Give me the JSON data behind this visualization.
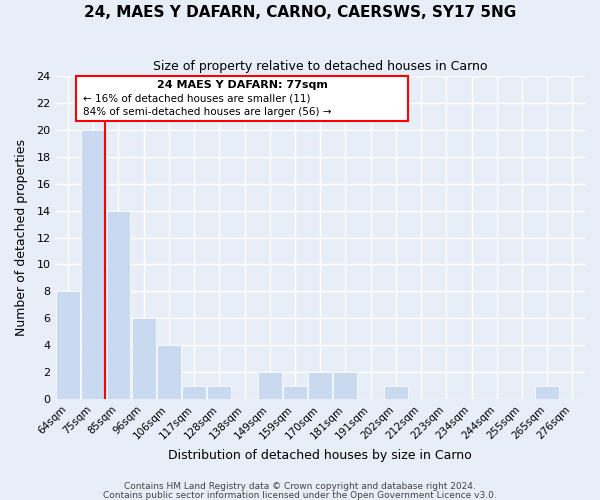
{
  "title": "24, MAES Y DAFARN, CARNO, CAERSWS, SY17 5NG",
  "subtitle": "Size of property relative to detached houses in Carno",
  "xlabel": "Distribution of detached houses by size in Carno",
  "ylabel": "Number of detached properties",
  "bin_labels": [
    "64sqm",
    "75sqm",
    "85sqm",
    "96sqm",
    "106sqm",
    "117sqm",
    "128sqm",
    "138sqm",
    "149sqm",
    "159sqm",
    "170sqm",
    "181sqm",
    "191sqm",
    "202sqm",
    "212sqm",
    "223sqm",
    "234sqm",
    "244sqm",
    "255sqm",
    "265sqm",
    "276sqm"
  ],
  "bar_heights": [
    8,
    20,
    14,
    6,
    4,
    1,
    1,
    0,
    2,
    1,
    2,
    2,
    0,
    1,
    0,
    0,
    0,
    0,
    0,
    1,
    0
  ],
  "bar_color": "#c9d9f0",
  "annotation_title": "24 MAES Y DAFARN: 77sqm",
  "annotation_line1": "← 16% of detached houses are smaller (11)",
  "annotation_line2": "84% of semi-detached houses are larger (56) →",
  "red_line_bar_index": 1,
  "ylim": [
    0,
    24
  ],
  "yticks": [
    0,
    2,
    4,
    6,
    8,
    10,
    12,
    14,
    16,
    18,
    20,
    22,
    24
  ],
  "footer1": "Contains HM Land Registry data © Crown copyright and database right 2024.",
  "footer2": "Contains public sector information licensed under the Open Government Licence v3.0.",
  "grid_color": "#ffffff",
  "bg_color": "#e8eef7"
}
